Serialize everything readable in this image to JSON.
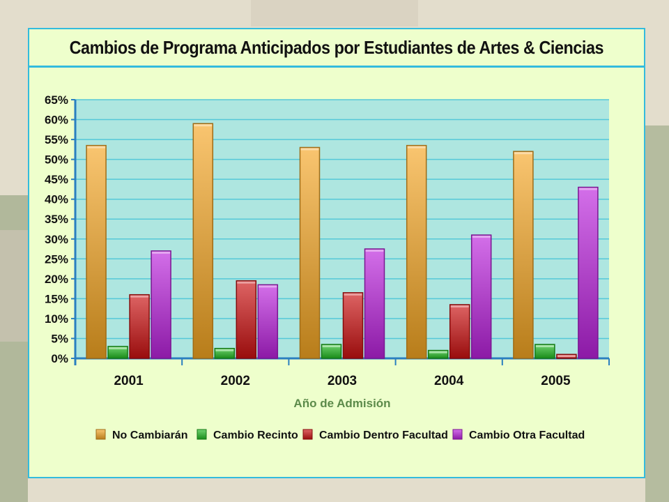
{
  "slide": {
    "title": "Cambios de Programa Anticipados por Estudiantes de Artes & Ciencias"
  },
  "colors": {
    "panel_bg": "#eeffcc",
    "panel_border": "#33bbdd",
    "plot_bg": "#aee6e0",
    "gridline": "#55c8d8",
    "xlabel_color": "#5c8a4a"
  },
  "chart_data": {
    "type": "bar",
    "title": "Cambios de Programa Anticipados por Estudiantes de Artes & Ciencias",
    "xlabel": "Año de Admisión",
    "ylabel": "",
    "categories": [
      "2001",
      "2002",
      "2003",
      "2004",
      "2005"
    ],
    "ylim": [
      0,
      65
    ],
    "yticks": [
      "0%",
      "5%",
      "10%",
      "15%",
      "20%",
      "25%",
      "30%",
      "35%",
      "40%",
      "45%",
      "50%",
      "55%",
      "60%",
      "65%"
    ],
    "ytick_values": [
      0,
      5,
      10,
      15,
      20,
      25,
      30,
      35,
      40,
      45,
      50,
      55,
      60,
      65
    ],
    "grid": true,
    "legend_position": "bottom",
    "series": [
      {
        "name": "No Cambiarán",
        "color": "#f5a623",
        "values": [
          53.5,
          59,
          53,
          53.5,
          52
        ]
      },
      {
        "name": "Cambio Recinto",
        "color": "#22bb22",
        "values": [
          3,
          2.5,
          3.5,
          2,
          3.5
        ]
      },
      {
        "name": "Cambio Dentro Facultad",
        "color": "#cc1111",
        "values": [
          16,
          19.5,
          16.5,
          13.5,
          1
        ]
      },
      {
        "name": "Cambio Otra Facultad",
        "color": "#bb22dd",
        "values": [
          27,
          18.5,
          27.5,
          31,
          43
        ]
      }
    ]
  }
}
